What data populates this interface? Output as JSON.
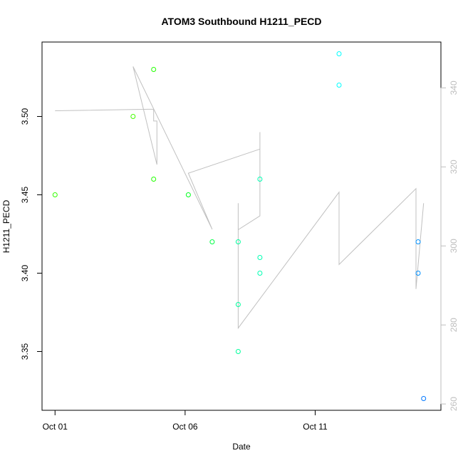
{
  "chart_data": {
    "type": "scatter",
    "title": "ATOM3 Southbound H1211_PECD",
    "xlabel": "Date",
    "ylabel": "H1211_PECD",
    "x_ticks": [
      "Oct 01",
      "Oct 06",
      "Oct 11"
    ],
    "x_tick_values": [
      "2023-10-01",
      "2023-10-06",
      "2023-10-11"
    ],
    "xlim": [
      "2023-09-30 12:00",
      "2023-10-15 20:00"
    ],
    "y_ticks": [
      "3.35",
      "3.40",
      "3.45",
      "3.50"
    ],
    "ylim": [
      3.3125,
      3.5475
    ],
    "y2_ticks": [
      "260",
      "280",
      "300",
      "320",
      "340"
    ],
    "y2lim": [
      258.4,
      351.6
    ],
    "grid": false,
    "colors": {
      "frame": "#000000",
      "secondary_axis": "#bdbdbd",
      "line": "#c0c0c0"
    },
    "series": [
      {
        "type": "points",
        "marker": "open-circle",
        "points": [
          {
            "x": "2023-10-01 00:00",
            "y": 3.45,
            "color": "#33ff00"
          },
          {
            "x": "2023-10-04 00:00",
            "y": 3.5,
            "color": "#44ff00"
          },
          {
            "x": "2023-10-04 19:00",
            "y": 3.53,
            "color": "#22ff00"
          },
          {
            "x": "2023-10-04 19:00",
            "y": 3.46,
            "color": "#22ff00"
          },
          {
            "x": "2023-10-06 03:00",
            "y": 3.45,
            "color": "#00ff1e"
          },
          {
            "x": "2023-10-07 01:00",
            "y": 3.42,
            "color": "#00ff44"
          },
          {
            "x": "2023-10-08 01:00",
            "y": 3.42,
            "color": "#00ff9d"
          },
          {
            "x": "2023-10-08 01:00",
            "y": 3.38,
            "color": "#00ff9d"
          },
          {
            "x": "2023-10-08 01:00",
            "y": 3.35,
            "color": "#00ff9d"
          },
          {
            "x": "2023-10-08 21:00",
            "y": 3.46,
            "color": "#00ffb3"
          },
          {
            "x": "2023-10-08 21:00",
            "y": 3.41,
            "color": "#00ffb3"
          },
          {
            "x": "2023-10-08 21:00",
            "y": 3.4,
            "color": "#00ffb3"
          },
          {
            "x": "2023-10-11 22:00",
            "y": 3.54,
            "color": "#00ffff"
          },
          {
            "x": "2023-10-11 22:00",
            "y": 3.52,
            "color": "#00ffff"
          },
          {
            "x": "2023-10-14 23:00",
            "y": 3.42,
            "color": "#0090ff"
          },
          {
            "x": "2023-10-14 23:00",
            "y": 3.4,
            "color": "#0090ff"
          },
          {
            "x": "2023-10-15 04:00",
            "y": 3.32,
            "color": "#0077ff"
          }
        ]
      },
      {
        "type": "line",
        "axis": "right",
        "points": [
          {
            "x": "2023-10-01 00:00",
            "y": 334.2
          },
          {
            "x": "2023-10-04 19:00",
            "y": 334.6
          },
          {
            "x": "2023-10-04 19:00",
            "y": 331.6
          },
          {
            "x": "2023-10-04 22:00",
            "y": 331.6
          },
          {
            "x": "2023-10-04 22:00",
            "y": 320.6
          },
          {
            "x": "2023-10-04 00:00",
            "y": 345.4
          },
          {
            "x": "2023-10-07 01:00",
            "y": 304.2
          },
          {
            "x": "2023-10-06 03:00",
            "y": 318.4
          },
          {
            "x": "2023-10-08 21:00",
            "y": 324.5
          },
          {
            "x": "2023-10-08 21:00",
            "y": 328.8
          },
          {
            "x": "2023-10-08 21:00",
            "y": 307.6
          },
          {
            "x": "2023-10-08 01:00",
            "y": 304.1
          },
          {
            "x": "2023-10-08 01:00",
            "y": 310.8
          },
          {
            "x": "2023-10-08 01:00",
            "y": 279.2
          },
          {
            "x": "2023-10-11 22:00",
            "y": 313.6
          },
          {
            "x": "2023-10-11 22:00",
            "y": 295.3
          },
          {
            "x": "2023-10-14 21:00",
            "y": 314.5
          },
          {
            "x": "2023-10-14 21:00",
            "y": 289.1
          },
          {
            "x": "2023-10-15 04:00",
            "y": 310.8
          }
        ]
      }
    ]
  }
}
